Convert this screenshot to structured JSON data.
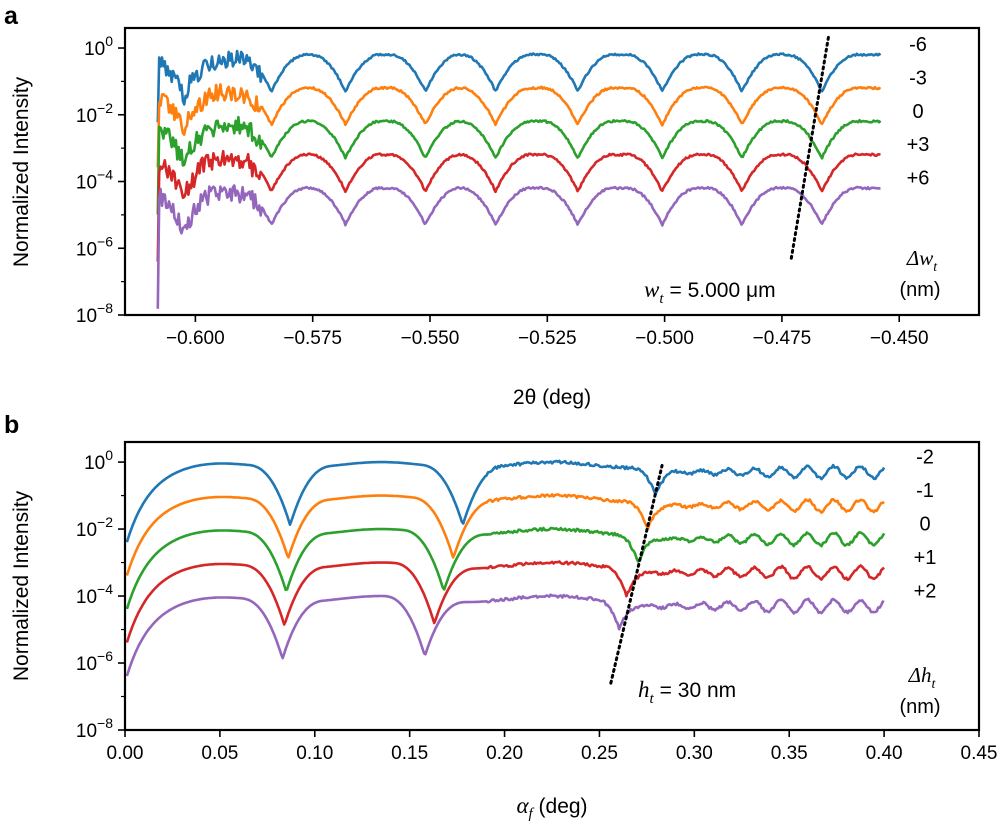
{
  "chart_data": [
    {
      "panel": "a",
      "type": "line",
      "title": "",
      "xlabel": "2θ (deg)",
      "ylabel": "Normalized Intensity",
      "xlim": [
        -0.615,
        -0.433
      ],
      "ylim_log10": [
        -8,
        0.6
      ],
      "xticks": [
        -0.6,
        -0.575,
        -0.55,
        -0.525,
        -0.5,
        -0.475,
        -0.45
      ],
      "xtick_labels": [
        "−0.600",
        "−0.575",
        "−0.550",
        "−0.525",
        "−0.500",
        "−0.475",
        "−0.450"
      ],
      "yticks_log10": [
        0,
        -2,
        -4,
        -6,
        -8
      ],
      "ytick_labels": [
        {
          "base": "10",
          "exp": "0"
        },
        {
          "base": "10",
          "exp": "-2"
        },
        {
          "base": "10",
          "exp": "-4"
        },
        {
          "base": "10",
          "exp": "-6"
        },
        {
          "base": "10",
          "exp": "-8"
        }
      ],
      "x_start": -0.608,
      "x_end": -0.454,
      "minima_x": [
        -0.6025,
        -0.5838,
        -0.568,
        -0.551,
        -0.536,
        -0.5185,
        -0.5005,
        -0.4835,
        -0.4665
      ],
      "annotation_main": "w",
      "annotation_sub": "t",
      "annotation_value": "= 5.000 μm",
      "delta_label_main": "Δw",
      "delta_label_sub": "t",
      "delta_label_unit": "(nm)",
      "dotted_line": {
        "x1": -0.473,
        "y1_log10": -6.3,
        "x2": -0.465,
        "y2_log10": 0.4
      },
      "series": [
        {
          "name": "-6",
          "color": "#1f77b4",
          "offset_log10": -0.2
        },
        {
          "name": "-3",
          "color": "#ff7f0e",
          "offset_log10": -1.2
        },
        {
          "name": "0",
          "color": "#2ca02c",
          "offset_log10": -2.2
        },
        {
          "name": "+3",
          "color": "#d62728",
          "offset_log10": -3.2
        },
        {
          "name": "+6",
          "color": "#9467bd",
          "offset_log10": -4.2
        }
      ]
    },
    {
      "panel": "b",
      "type": "line",
      "title": "",
      "xlabel": "αf (deg)",
      "xlabel_main": "α",
      "xlabel_sub": "f",
      "xlabel_unit": " (deg)",
      "ylabel": "Normalized Intensity",
      "xlim": [
        0.0,
        0.45
      ],
      "ylim_log10": [
        -8,
        0.6
      ],
      "xticks": [
        0.0,
        0.05,
        0.1,
        0.15,
        0.2,
        0.25,
        0.3,
        0.35,
        0.4,
        0.45
      ],
      "xtick_labels": [
        "0.00",
        "0.05",
        "0.10",
        "0.15",
        "0.20",
        "0.25",
        "0.30",
        "0.35",
        "0.40",
        "0.45"
      ],
      "yticks_log10": [
        0,
        -2,
        -4,
        -6,
        -8
      ],
      "ytick_labels": [
        {
          "base": "10",
          "exp": "0"
        },
        {
          "base": "10",
          "exp": "-2"
        },
        {
          "base": "10",
          "exp": "-4"
        },
        {
          "base": "10",
          "exp": "-6"
        },
        {
          "base": "10",
          "exp": "-8"
        }
      ],
      "x_start": 0.001,
      "x_end": 0.4,
      "minima_x": [
        0.087,
        0.178
      ],
      "minima_shift": [
        -0.001,
        -0.005
      ],
      "annotation_main": "h",
      "annotation_sub": "t",
      "annotation_value": "= 30 nm",
      "delta_label_main": "Δh",
      "delta_label_sub": "t",
      "delta_label_unit": "(nm)",
      "dotted_line": {
        "x1": 0.256,
        "y1_log10": -6.6,
        "x2": 0.283,
        "y2_log10": -0.1
      },
      "series": [
        {
          "name": "-2",
          "color": "#1f77b4",
          "offset_log10": 0.0,
          "third_min_x": 0.279
        },
        {
          "name": "-1",
          "color": "#ff7f0e",
          "offset_log10": -1.0,
          "third_min_x": 0.275
        },
        {
          "name": "0",
          "color": "#2ca02c",
          "offset_log10": -2.0,
          "third_min_x": 0.27
        },
        {
          "name": "+1",
          "color": "#d62728",
          "offset_log10": -3.0,
          "third_min_x": 0.264
        },
        {
          "name": "+2",
          "color": "#9467bd",
          "offset_log10": -4.0,
          "third_min_x": 0.26
        }
      ]
    }
  ]
}
